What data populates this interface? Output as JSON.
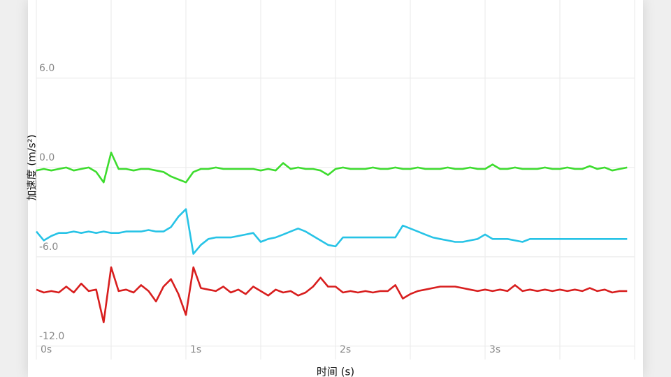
{
  "chart_data": {
    "type": "line",
    "ylabel": "加速度 (m/s²)",
    "xlabel": "时间 (s)",
    "xlim": [
      0,
      4
    ],
    "ylim": [
      -12.9,
      11.25
    ],
    "xticks": [
      {
        "value": 0,
        "label": "0s"
      },
      {
        "value": 1,
        "label": "1s"
      },
      {
        "value": 2,
        "label": "2s"
      },
      {
        "value": 3,
        "label": "3s"
      }
    ],
    "xminor": [
      0.5,
      1.5,
      2.5,
      3.5
    ],
    "yticks": [
      {
        "value": 6,
        "label": "6.0"
      },
      {
        "value": 0,
        "label": "0.0"
      },
      {
        "value": -6,
        "label": "-6.0"
      },
      {
        "value": -12,
        "label": "-12.0"
      }
    ],
    "grid": true,
    "x": [
      0,
      0.05,
      0.1,
      0.15,
      0.2,
      0.25,
      0.3,
      0.35,
      0.4,
      0.45,
      0.5,
      0.55,
      0.6,
      0.65,
      0.7,
      0.75,
      0.8,
      0.85,
      0.9,
      0.95,
      1,
      1.05,
      1.1,
      1.15,
      1.2,
      1.25,
      1.3,
      1.35,
      1.4,
      1.45,
      1.5,
      1.55,
      1.6,
      1.65,
      1.7,
      1.75,
      1.8,
      1.85,
      1.9,
      1.95,
      2,
      2.05,
      2.1,
      2.15,
      2.2,
      2.25,
      2.3,
      2.35,
      2.4,
      2.45,
      2.5,
      2.55,
      2.6,
      2.65,
      2.7,
      2.75,
      2.8,
      2.85,
      2.9,
      2.95,
      3,
      3.05,
      3.1,
      3.15,
      3.2,
      3.25,
      3.3,
      3.35,
      3.4,
      3.45,
      3.5,
      3.55,
      3.6,
      3.65,
      3.7,
      3.75,
      3.8,
      3.85,
      3.9,
      3.95
    ],
    "series": [
      {
        "color": "#3ddc2e",
        "values": [
          -0.2,
          -0.1,
          -0.2,
          -0.1,
          0.0,
          -0.2,
          -0.1,
          0.0,
          -0.3,
          -1.0,
          1.0,
          -0.1,
          -0.1,
          -0.2,
          -0.1,
          -0.1,
          -0.2,
          -0.3,
          -0.6,
          -0.8,
          -1.0,
          -0.3,
          -0.1,
          -0.1,
          0.0,
          -0.1,
          -0.1,
          -0.1,
          -0.1,
          -0.1,
          -0.2,
          -0.1,
          -0.2,
          0.3,
          -0.1,
          0.0,
          -0.1,
          -0.1,
          -0.2,
          -0.5,
          -0.1,
          0.0,
          -0.1,
          -0.1,
          -0.1,
          0.0,
          -0.1,
          -0.1,
          0.0,
          -0.1,
          -0.1,
          0.0,
          -0.1,
          -0.1,
          -0.1,
          0.0,
          -0.1,
          -0.1,
          0.0,
          -0.1,
          -0.1,
          0.2,
          -0.1,
          -0.1,
          0.0,
          -0.1,
          -0.1,
          -0.1,
          0.0,
          -0.1,
          -0.1,
          0.0,
          -0.1,
          -0.1,
          0.1,
          -0.1,
          0.0,
          -0.2,
          -0.1,
          0.0
        ]
      },
      {
        "color": "#27c3e6",
        "values": [
          -4.3,
          -4.9,
          -4.6,
          -4.4,
          -4.4,
          -4.3,
          -4.4,
          -4.3,
          -4.4,
          -4.3,
          -4.4,
          -4.4,
          -4.3,
          -4.3,
          -4.3,
          -4.2,
          -4.3,
          -4.3,
          -4.0,
          -3.3,
          -2.8,
          -5.8,
          -5.2,
          -4.8,
          -4.7,
          -4.7,
          -4.7,
          -4.6,
          -4.5,
          -4.4,
          -5.0,
          -4.8,
          -4.7,
          -4.5,
          -4.3,
          -4.1,
          -4.3,
          -4.6,
          -4.9,
          -5.2,
          -5.3,
          -4.7,
          -4.7,
          -4.7,
          -4.7,
          -4.7,
          -4.7,
          -4.7,
          -4.7,
          -3.9,
          -4.1,
          -4.3,
          -4.5,
          -4.7,
          -4.8,
          -4.9,
          -5.0,
          -5.0,
          -4.9,
          -4.8,
          -4.5,
          -4.8,
          -4.8,
          -4.8,
          -4.9,
          -5.0,
          -4.8,
          -4.8,
          -4.8,
          -4.8,
          -4.8,
          -4.8,
          -4.8,
          -4.8,
          -4.8,
          -4.8,
          -4.8,
          -4.8,
          -4.8,
          -4.8
        ]
      },
      {
        "color": "#d81e1e",
        "values": [
          -8.2,
          -8.4,
          -8.3,
          -8.4,
          -8.0,
          -8.4,
          -7.8,
          -8.3,
          -8.2,
          -10.4,
          -6.7,
          -8.3,
          -8.2,
          -8.4,
          -7.9,
          -8.3,
          -9.0,
          -8.0,
          -7.5,
          -8.5,
          -9.9,
          -6.7,
          -8.1,
          -8.2,
          -8.3,
          -8.0,
          -8.4,
          -8.2,
          -8.5,
          -8.0,
          -8.3,
          -8.6,
          -8.2,
          -8.4,
          -8.3,
          -8.6,
          -8.4,
          -8.0,
          -7.4,
          -8.0,
          -8.0,
          -8.4,
          -8.3,
          -8.4,
          -8.3,
          -8.4,
          -8.3,
          -8.3,
          -7.9,
          -8.8,
          -8.5,
          -8.3,
          -8.2,
          -8.1,
          -8.0,
          -8.0,
          -8.0,
          -8.1,
          -8.2,
          -8.3,
          -8.2,
          -8.3,
          -8.2,
          -8.3,
          -7.9,
          -8.3,
          -8.2,
          -8.3,
          -8.2,
          -8.3,
          -8.2,
          -8.3,
          -8.2,
          -8.3,
          -8.1,
          -8.3,
          -8.2,
          -8.4,
          -8.3,
          -8.3
        ]
      }
    ]
  }
}
